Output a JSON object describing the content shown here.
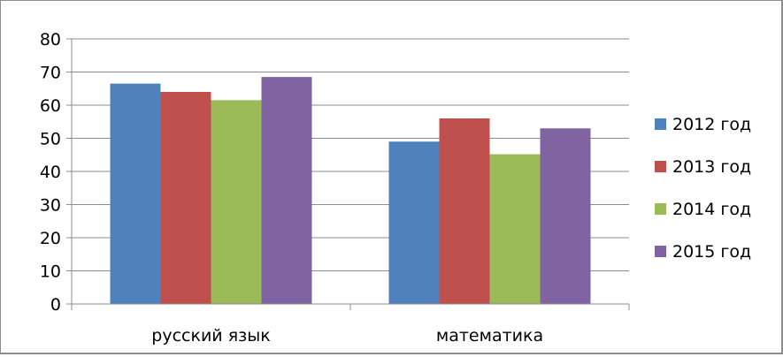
{
  "chart_data": {
    "type": "bar",
    "categories": [
      "русский язык",
      "математика"
    ],
    "series": [
      {
        "name": "2012 год",
        "color": "#4f81bd",
        "values": [
          66.5,
          49
        ]
      },
      {
        "name": "2013 год",
        "color": "#c0504d",
        "values": [
          64,
          56
        ]
      },
      {
        "name": "2014 год",
        "color": "#9bbb59",
        "values": [
          61.5,
          45.2
        ]
      },
      {
        "name": "2015 год",
        "color": "#8064a2",
        "values": [
          68.5,
          53
        ]
      }
    ],
    "ylim": [
      0,
      80
    ],
    "yticks": [
      0,
      10,
      20,
      30,
      40,
      50,
      60,
      70,
      80
    ],
    "grid": true,
    "legend": "right"
  }
}
